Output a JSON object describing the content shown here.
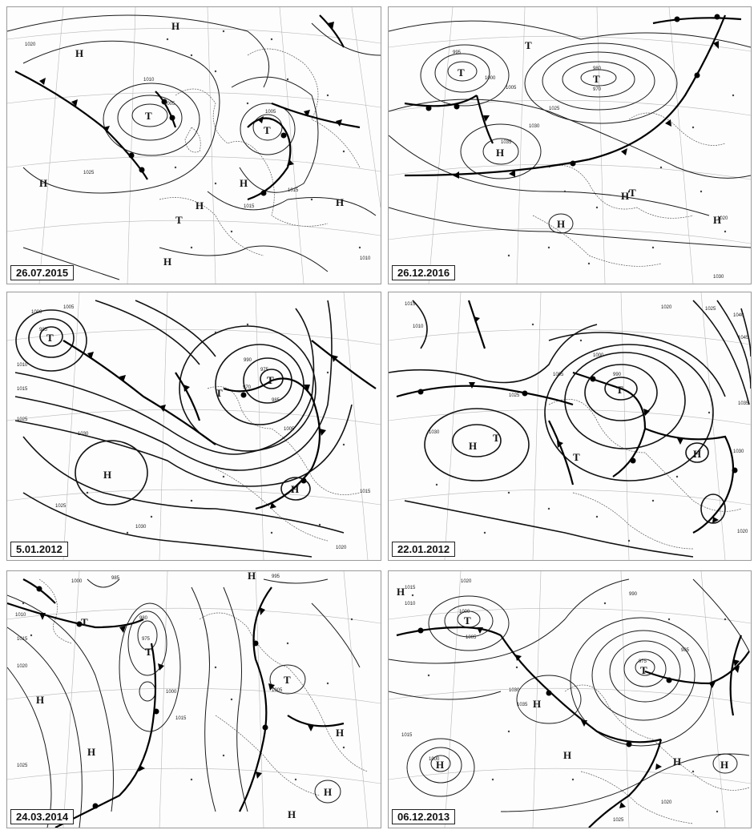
{
  "panels": [
    {
      "date": "26.07.2015",
      "side_caption": "",
      "centers": [
        {
          "letter": "H"
        },
        {
          "letter": "H"
        },
        {
          "letter": "H"
        },
        {
          "letter": "T"
        },
        {
          "letter": "T"
        },
        {
          "letter": "H"
        },
        {
          "letter": "H"
        },
        {
          "letter": "T"
        },
        {
          "letter": "H"
        },
        {
          "letter": "H"
        }
      ],
      "isobar_labels": [
        "1010",
        "1020",
        "1005",
        "1025",
        "1015",
        "1010",
        "1005",
        "1015"
      ]
    },
    {
      "date": "26.12.2016",
      "side_caption": "",
      "centers": [
        {
          "letter": "T"
        },
        {
          "letter": "T"
        },
        {
          "letter": "H"
        },
        {
          "letter": "T"
        },
        {
          "letter": "H"
        },
        {
          "letter": "H"
        },
        {
          "letter": "T"
        },
        {
          "letter": "H"
        }
      ],
      "isobar_labels": [
        "995",
        "1000",
        "1005",
        "1025",
        "1030",
        "1035",
        "980",
        "970",
        "1020",
        "1030"
      ]
    },
    {
      "date": "5.01.2012",
      "side_caption": "",
      "centers": [
        {
          "letter": "T"
        },
        {
          "letter": "T"
        },
        {
          "letter": "T"
        },
        {
          "letter": "H"
        },
        {
          "letter": "H"
        }
      ],
      "isobar_labels": [
        "1000",
        "985",
        "1005",
        "1010",
        "1015",
        "1025",
        "1030",
        "990",
        "975",
        "970",
        "985",
        "1005",
        "1015",
        "1025",
        "1030",
        "1020"
      ]
    },
    {
      "date": "22.01.2012",
      "side_caption": "",
      "centers": [
        {
          "letter": "T"
        },
        {
          "letter": "T"
        },
        {
          "letter": "H"
        },
        {
          "letter": "T"
        },
        {
          "letter": "H"
        }
      ],
      "isobar_labels": [
        "1015",
        "1010",
        "1025",
        "1030",
        "1005",
        "990",
        "1000",
        "1020",
        "1025",
        "1040",
        "1045",
        "1035",
        "1030",
        "1020"
      ]
    },
    {
      "date": "24.03.2014",
      "side_caption": "",
      "centers": [
        {
          "letter": "H"
        },
        {
          "letter": "T"
        },
        {
          "letter": "T"
        },
        {
          "letter": "H"
        },
        {
          "letter": "H"
        },
        {
          "letter": "T"
        },
        {
          "letter": "H"
        },
        {
          "letter": "H"
        },
        {
          "letter": "H"
        }
      ],
      "isobar_labels": [
        "1000",
        "985",
        "1010",
        "1015",
        "1020",
        "1025",
        "980",
        "975",
        "1000",
        "1015",
        "1005",
        "995"
      ]
    },
    {
      "date": "06.12.2013",
      "side_caption": "",
      "centers": [
        {
          "letter": "H"
        },
        {
          "letter": "T"
        },
        {
          "letter": "H"
        },
        {
          "letter": "T"
        },
        {
          "letter": "H"
        },
        {
          "letter": "H"
        },
        {
          "letter": "H"
        },
        {
          "letter": "H"
        }
      ],
      "isobar_labels": [
        "1020",
        "1015",
        "1010",
        "1005",
        "1000",
        "1030",
        "1035",
        "990",
        "985",
        "975",
        "1000",
        "1015",
        "1020",
        "1025"
      ]
    }
  ]
}
